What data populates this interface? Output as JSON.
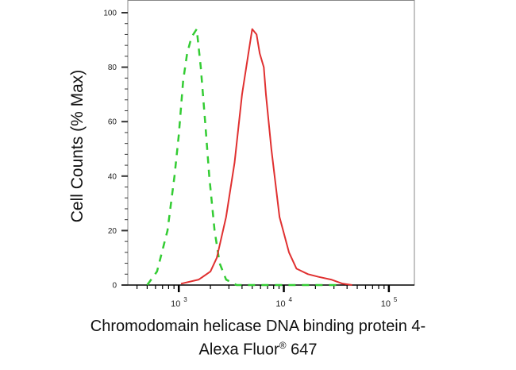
{
  "chart_data": {
    "type": "line",
    "title": "",
    "xlabel_line1": "Chromodomain helicase DNA binding protein 4-",
    "xlabel_line2_prefix": "Alexa Fluor",
    "xlabel_line2_sup": "®",
    "xlabel_line2_suffix": " 647",
    "ylabel": "Cell Counts (% Max)",
    "xscale": "log",
    "xlim": [
      327,
      175000
    ],
    "ylim": [
      0,
      100
    ],
    "yticks": [
      "0",
      "20",
      "40",
      "60",
      "80",
      "100"
    ],
    "xticks": [
      {
        "base": "10",
        "exp": "3"
      },
      {
        "base": "10",
        "exp": "4"
      },
      {
        "base": "10",
        "exp": "5"
      }
    ],
    "grid": false,
    "legend": "none",
    "series": [
      {
        "color": "#33cc33",
        "style": "dashed",
        "x": [
          500,
          620,
          780,
          910,
          1000,
          1100,
          1200,
          1320,
          1480,
          1620,
          1780,
          1950,
          2190,
          2450,
          2820,
          3550,
          36000
        ],
        "y": [
          0,
          5,
          20,
          40,
          55,
          75,
          85,
          91,
          94,
          80,
          60,
          40,
          20,
          8,
          2,
          0,
          0
        ]
      },
      {
        "color": "#e03030",
        "style": "solid",
        "x": [
          1050,
          1550,
          2000,
          2300,
          2820,
          3400,
          4000,
          4600,
          5000,
          5500,
          5900,
          6450,
          6750,
          7600,
          9100,
          11200,
          13200,
          17000,
          21400,
          28200,
          36300,
          44700
        ],
        "y": [
          0.5,
          2,
          5,
          10,
          25,
          45,
          70,
          85,
          94,
          92,
          85,
          80,
          70,
          50,
          25,
          12,
          6,
          4,
          3,
          2,
          0.5,
          0
        ]
      }
    ]
  }
}
